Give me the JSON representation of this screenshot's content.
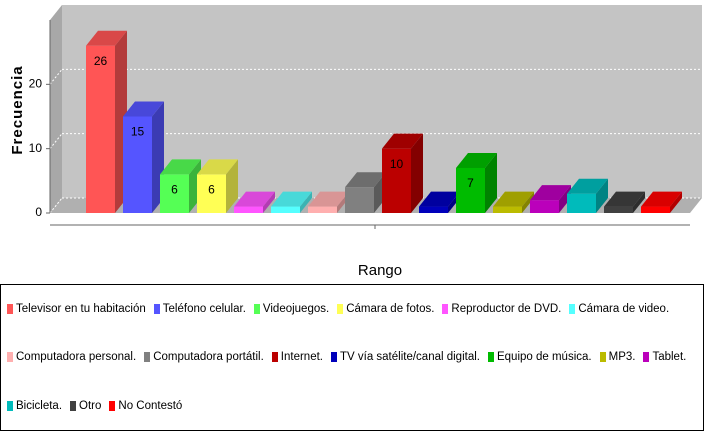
{
  "chart_data": {
    "type": "bar3d",
    "y_label": "Frecuencia",
    "x_label": "Rango",
    "ylim": [
      0,
      30
    ],
    "yticks": [
      0,
      10,
      20
    ],
    "grid": true,
    "series": [
      {
        "name": "Televisor en tu habitación",
        "color": "#ff5555",
        "values": [
          26
        ],
        "value_labels": [
          "26"
        ]
      },
      {
        "name": "Teléfono celular.",
        "color": "#5555ff",
        "values": [
          15
        ],
        "value_labels": [
          "15"
        ]
      },
      {
        "name": "Videojuegos.",
        "color": "#55ff55",
        "values": [
          6
        ],
        "value_labels": [
          "6"
        ]
      },
      {
        "name": "Cámara de fotos.",
        "color": "#ffff55",
        "values": [
          6
        ],
        "value_labels": [
          "6"
        ]
      },
      {
        "name": "Reproductor de DVD.",
        "color": "#ff55ff",
        "values": [
          1
        ],
        "value_labels": [
          null
        ]
      },
      {
        "name": "Cámara de video.",
        "color": "#55ffff",
        "values": [
          1
        ],
        "value_labels": [
          null
        ]
      },
      {
        "name": "Computadora personal.",
        "color": "#ffafaf",
        "values": [
          1
        ],
        "value_labels": [
          null
        ]
      },
      {
        "name": "Computadora portátil.",
        "color": "#808080",
        "values": [
          4
        ],
        "value_labels": [
          null
        ]
      },
      {
        "name": "Internet.",
        "color": "#bb0000",
        "values": [
          10
        ],
        "value_labels": [
          "10"
        ]
      },
      {
        "name": "TV vía satélite/canal digital.",
        "color": "#0000bb",
        "values": [
          1
        ],
        "value_labels": [
          null
        ]
      },
      {
        "name": "Equipo de música.",
        "color": "#00bb00",
        "values": [
          7
        ],
        "value_labels": [
          "7"
        ]
      },
      {
        "name": "MP3.",
        "color": "#bbbb00",
        "values": [
          1
        ],
        "value_labels": [
          null
        ]
      },
      {
        "name": "Tablet.",
        "color": "#bb00bb",
        "values": [
          2
        ],
        "value_labels": [
          null
        ]
      },
      {
        "name": "Bicicleta.",
        "color": "#00bbbb",
        "values": [
          3
        ],
        "value_labels": [
          null
        ]
      },
      {
        "name": "Otro",
        "color": "#404040",
        "values": [
          1
        ],
        "value_labels": [
          null
        ]
      },
      {
        "name": "No Contestó",
        "color": "#ff0000",
        "values": [
          1
        ],
        "value_labels": [
          null
        ]
      }
    ]
  }
}
